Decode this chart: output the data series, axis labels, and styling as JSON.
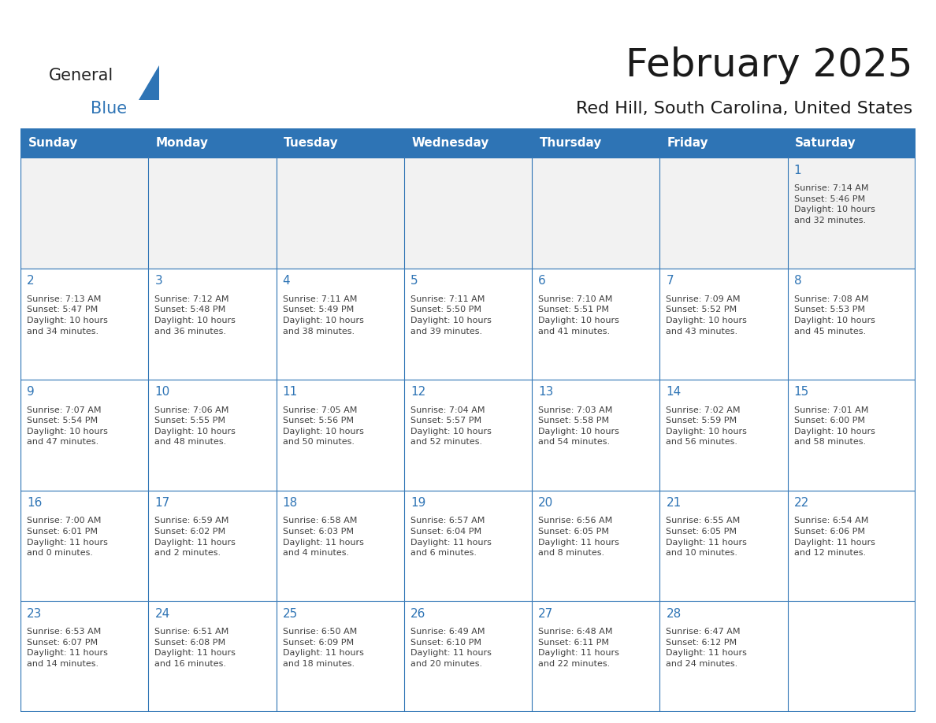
{
  "title": "February 2025",
  "subtitle": "Red Hill, South Carolina, United States",
  "header_bg": "#2E74B5",
  "header_text_color": "#FFFFFF",
  "cell_bg": "#FFFFFF",
  "cell_bg_alt": "#F2F2F2",
  "cell_border_color": "#2E74B5",
  "day_number_color": "#2E74B5",
  "cell_text_color": "#404040",
  "background_color": "#FFFFFF",
  "days_of_week": [
    "Sunday",
    "Monday",
    "Tuesday",
    "Wednesday",
    "Thursday",
    "Friday",
    "Saturday"
  ],
  "logo_text1": "General",
  "logo_text2": "Blue",
  "logo_triangle_color": "#2E74B5",
  "title_fontsize": 36,
  "subtitle_fontsize": 16,
  "header_fontsize": 11,
  "day_num_fontsize": 11,
  "cell_text_fontsize": 8,
  "calendar_data": [
    [
      {
        "day": null,
        "info": ""
      },
      {
        "day": null,
        "info": ""
      },
      {
        "day": null,
        "info": ""
      },
      {
        "day": null,
        "info": ""
      },
      {
        "day": null,
        "info": ""
      },
      {
        "day": null,
        "info": ""
      },
      {
        "day": 1,
        "info": "Sunrise: 7:14 AM\nSunset: 5:46 PM\nDaylight: 10 hours\nand 32 minutes."
      }
    ],
    [
      {
        "day": 2,
        "info": "Sunrise: 7:13 AM\nSunset: 5:47 PM\nDaylight: 10 hours\nand 34 minutes."
      },
      {
        "day": 3,
        "info": "Sunrise: 7:12 AM\nSunset: 5:48 PM\nDaylight: 10 hours\nand 36 minutes."
      },
      {
        "day": 4,
        "info": "Sunrise: 7:11 AM\nSunset: 5:49 PM\nDaylight: 10 hours\nand 38 minutes."
      },
      {
        "day": 5,
        "info": "Sunrise: 7:11 AM\nSunset: 5:50 PM\nDaylight: 10 hours\nand 39 minutes."
      },
      {
        "day": 6,
        "info": "Sunrise: 7:10 AM\nSunset: 5:51 PM\nDaylight: 10 hours\nand 41 minutes."
      },
      {
        "day": 7,
        "info": "Sunrise: 7:09 AM\nSunset: 5:52 PM\nDaylight: 10 hours\nand 43 minutes."
      },
      {
        "day": 8,
        "info": "Sunrise: 7:08 AM\nSunset: 5:53 PM\nDaylight: 10 hours\nand 45 minutes."
      }
    ],
    [
      {
        "day": 9,
        "info": "Sunrise: 7:07 AM\nSunset: 5:54 PM\nDaylight: 10 hours\nand 47 minutes."
      },
      {
        "day": 10,
        "info": "Sunrise: 7:06 AM\nSunset: 5:55 PM\nDaylight: 10 hours\nand 48 minutes."
      },
      {
        "day": 11,
        "info": "Sunrise: 7:05 AM\nSunset: 5:56 PM\nDaylight: 10 hours\nand 50 minutes."
      },
      {
        "day": 12,
        "info": "Sunrise: 7:04 AM\nSunset: 5:57 PM\nDaylight: 10 hours\nand 52 minutes."
      },
      {
        "day": 13,
        "info": "Sunrise: 7:03 AM\nSunset: 5:58 PM\nDaylight: 10 hours\nand 54 minutes."
      },
      {
        "day": 14,
        "info": "Sunrise: 7:02 AM\nSunset: 5:59 PM\nDaylight: 10 hours\nand 56 minutes."
      },
      {
        "day": 15,
        "info": "Sunrise: 7:01 AM\nSunset: 6:00 PM\nDaylight: 10 hours\nand 58 minutes."
      }
    ],
    [
      {
        "day": 16,
        "info": "Sunrise: 7:00 AM\nSunset: 6:01 PM\nDaylight: 11 hours\nand 0 minutes."
      },
      {
        "day": 17,
        "info": "Sunrise: 6:59 AM\nSunset: 6:02 PM\nDaylight: 11 hours\nand 2 minutes."
      },
      {
        "day": 18,
        "info": "Sunrise: 6:58 AM\nSunset: 6:03 PM\nDaylight: 11 hours\nand 4 minutes."
      },
      {
        "day": 19,
        "info": "Sunrise: 6:57 AM\nSunset: 6:04 PM\nDaylight: 11 hours\nand 6 minutes."
      },
      {
        "day": 20,
        "info": "Sunrise: 6:56 AM\nSunset: 6:05 PM\nDaylight: 11 hours\nand 8 minutes."
      },
      {
        "day": 21,
        "info": "Sunrise: 6:55 AM\nSunset: 6:05 PM\nDaylight: 11 hours\nand 10 minutes."
      },
      {
        "day": 22,
        "info": "Sunrise: 6:54 AM\nSunset: 6:06 PM\nDaylight: 11 hours\nand 12 minutes."
      }
    ],
    [
      {
        "day": 23,
        "info": "Sunrise: 6:53 AM\nSunset: 6:07 PM\nDaylight: 11 hours\nand 14 minutes."
      },
      {
        "day": 24,
        "info": "Sunrise: 6:51 AM\nSunset: 6:08 PM\nDaylight: 11 hours\nand 16 minutes."
      },
      {
        "day": 25,
        "info": "Sunrise: 6:50 AM\nSunset: 6:09 PM\nDaylight: 11 hours\nand 18 minutes."
      },
      {
        "day": 26,
        "info": "Sunrise: 6:49 AM\nSunset: 6:10 PM\nDaylight: 11 hours\nand 20 minutes."
      },
      {
        "day": 27,
        "info": "Sunrise: 6:48 AM\nSunset: 6:11 PM\nDaylight: 11 hours\nand 22 minutes."
      },
      {
        "day": 28,
        "info": "Sunrise: 6:47 AM\nSunset: 6:12 PM\nDaylight: 11 hours\nand 24 minutes."
      },
      {
        "day": null,
        "info": ""
      }
    ]
  ]
}
